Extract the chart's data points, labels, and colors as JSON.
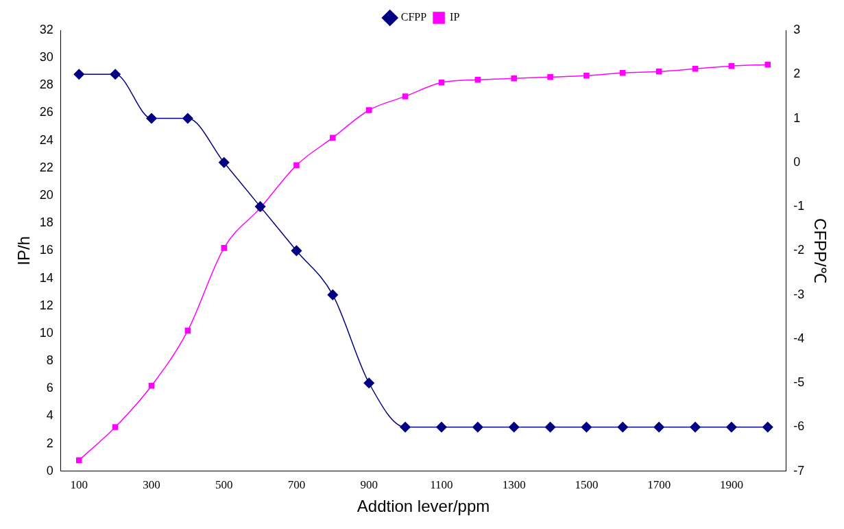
{
  "chart_data": {
    "type": "line",
    "xlabel": "Addtion lever/ppm",
    "ylabel": "IP/h",
    "y2label": "CFPP/℃",
    "x": [
      100,
      200,
      300,
      400,
      500,
      600,
      700,
      800,
      900,
      1000,
      1100,
      1200,
      1300,
      1400,
      1500,
      1600,
      1700,
      1800,
      1900,
      2000
    ],
    "xlim": [
      50,
      2050
    ],
    "xticks": [
      100,
      300,
      500,
      700,
      900,
      1100,
      1300,
      1500,
      1700,
      1900
    ],
    "ylim": [
      0,
      32
    ],
    "yticks": [
      0,
      2,
      4,
      6,
      8,
      10,
      12,
      14,
      16,
      18,
      20,
      22,
      24,
      26,
      28,
      30,
      32
    ],
    "y2lim": [
      -7,
      3
    ],
    "y2ticks": [
      -7,
      -6,
      -5,
      -4,
      -3,
      -2,
      -1,
      0,
      1,
      2,
      3
    ],
    "grid": false,
    "legend": "top",
    "series": [
      {
        "name": "IP",
        "color": "#ff00ff",
        "marker": "square",
        "values": [
          0.8,
          3.2,
          6.2,
          10.2,
          16.2,
          19.1,
          22.2,
          24.2,
          26.2,
          27.2,
          28.2,
          28.4,
          28.5,
          28.6,
          28.7,
          28.9,
          29.0,
          29.2,
          29.4,
          29.5
        ]
      },
      {
        "name": "CFPP",
        "color": "#000080",
        "marker": "diamond",
        "axis": "y2",
        "values": [
          2,
          2,
          1,
          1,
          0,
          -1,
          -2,
          -3,
          -5,
          -6,
          -6,
          -6,
          -6,
          -6,
          -6,
          -6,
          -6,
          -6,
          -6,
          -6
        ]
      }
    ]
  }
}
